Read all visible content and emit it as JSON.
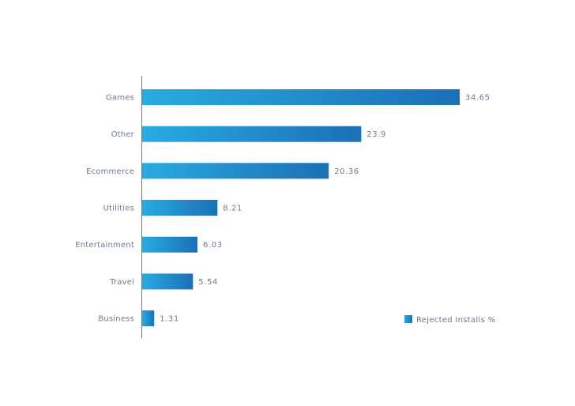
{
  "chart_data": {
    "type": "bar",
    "orientation": "horizontal",
    "categories": [
      "Games",
      "Other",
      "Ecommerce",
      "Utilities",
      "Entertainment",
      "Travel",
      "Business"
    ],
    "series": [
      {
        "name": "Rejected Installs %",
        "values": [
          34.65,
          23.9,
          20.36,
          8.21,
          6.03,
          5.54,
          1.31
        ]
      }
    ],
    "value_labels": [
      "34.65",
      "23.9",
      "20.36",
      "8.21",
      "6.03",
      "5.54",
      "1.31"
    ],
    "title": "",
    "xlabel": "",
    "ylabel": "",
    "xlim": [
      0,
      35
    ],
    "grid": false,
    "legend_position": "bottom-right",
    "colors": {
      "bar_start": "#29abe2",
      "bar_end": "#1b6fb6",
      "axis": "#6b7a93",
      "text": "#6b7a93"
    }
  }
}
